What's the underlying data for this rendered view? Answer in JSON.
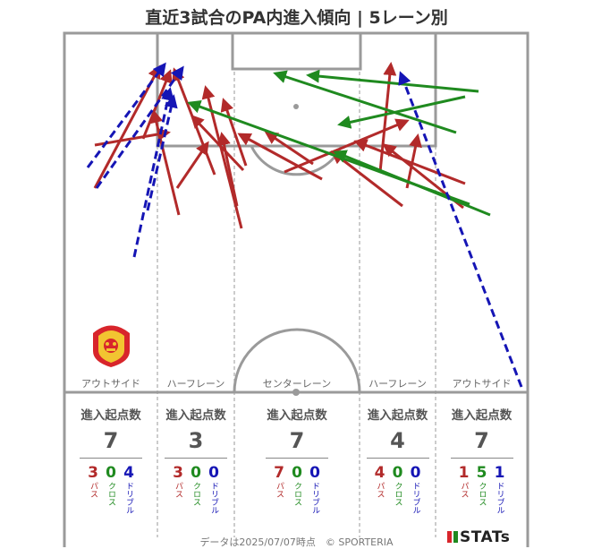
{
  "title": "直近3試合のPA内進入傾向 | 5レーン別",
  "lanes": [
    {
      "label": "アウトサイド",
      "header": "進入起点数",
      "total": "7",
      "pass": "3",
      "cross": "0",
      "dribble": "4"
    },
    {
      "label": "ハーフレーン",
      "header": "進入起点数",
      "total": "3",
      "pass": "3",
      "cross": "0",
      "dribble": "0"
    },
    {
      "label": "センターレーン",
      "header": "進入起点数",
      "total": "7",
      "pass": "7",
      "cross": "0",
      "dribble": "0"
    },
    {
      "label": "ハーフレーン",
      "header": "進入起点数",
      "total": "4",
      "pass": "4",
      "cross": "0",
      "dribble": "0"
    },
    {
      "label": "アウトサイド",
      "header": "進入起点数",
      "total": "7",
      "pass": "1",
      "cross": "5",
      "dribble": "1"
    }
  ],
  "breakdown_labels": {
    "pass": "パス",
    "cross": "クロス",
    "dribble": "ドリブル"
  },
  "colors": {
    "pass": "#b22a2a",
    "cross": "#1f8a1f",
    "dribble": "#1515b5",
    "pitch_line": "#999999"
  },
  "footer": "データは2025/07/07時点　© SPORTERIA",
  "brand": "STATs",
  "crest_icon": "club-crest-icon"
}
